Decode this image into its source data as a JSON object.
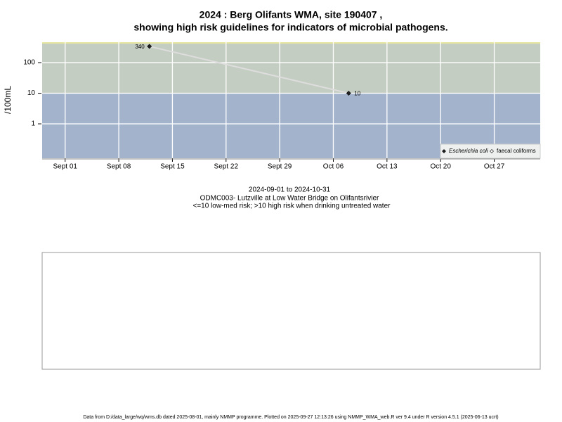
{
  "chart_data": {
    "type": "line",
    "title": "2024 : Berg Olifants WMA, site 190407 ,",
    "subtitle": "showing high risk guidelines for indicators of microbial pathogens.",
    "y_label": "/100mL",
    "log_y": true,
    "ylim": [
      0.075,
      465
    ],
    "yticks": [
      1,
      10,
      100
    ],
    "xlim": [
      "2024-08-29",
      "2024-11-02"
    ],
    "xticks": [
      {
        "value": "2024-09-01",
        "label": "Sept 01"
      },
      {
        "value": "2024-09-08",
        "label": "Sept 08"
      },
      {
        "value": "2024-09-15",
        "label": "Sept 15"
      },
      {
        "value": "2024-09-22",
        "label": "Sept 22"
      },
      {
        "value": "2024-09-29",
        "label": "Sept 29"
      },
      {
        "value": "2024-10-06",
        "label": "Oct 06"
      },
      {
        "value": "2024-10-13",
        "label": "Oct 13"
      },
      {
        "value": "2024-10-20",
        "label": "Oct 20"
      },
      {
        "value": "2024-10-27",
        "label": "Oct 27"
      }
    ],
    "grid": true,
    "guideline": 10,
    "band_colors": [
      "#a3b3cc",
      "#c4cdc2"
    ],
    "line_color": "#dddddd",
    "legend": "lower right",
    "series": [
      {
        "name": "Escherichia coli",
        "color": "#222222",
        "x": [
          "2024-09-12",
          "2024-10-08"
        ],
        "values": [
          340,
          10
        ]
      },
      {
        "name": "faecal coliforms",
        "color": "#ffffff",
        "x": [],
        "values": []
      }
    ],
    "notes": [
      "2024-09-01 to 2024-10-31",
      "ODMC003- Lutzville at Low Water Bridge on Olifantsrivier",
      "<=10 low-med risk; >10 high risk when drinking untreated water"
    ],
    "footer": "Data from D:/data_large/wq/wms.db dated 2025-08-01, mainly NMMP programme. Plotted on 2025-09-27 12:13:26 using NMMP_WMA_web.R ver 9.4 under R version 4.5.1 (2025-06-13 ucrt)"
  }
}
